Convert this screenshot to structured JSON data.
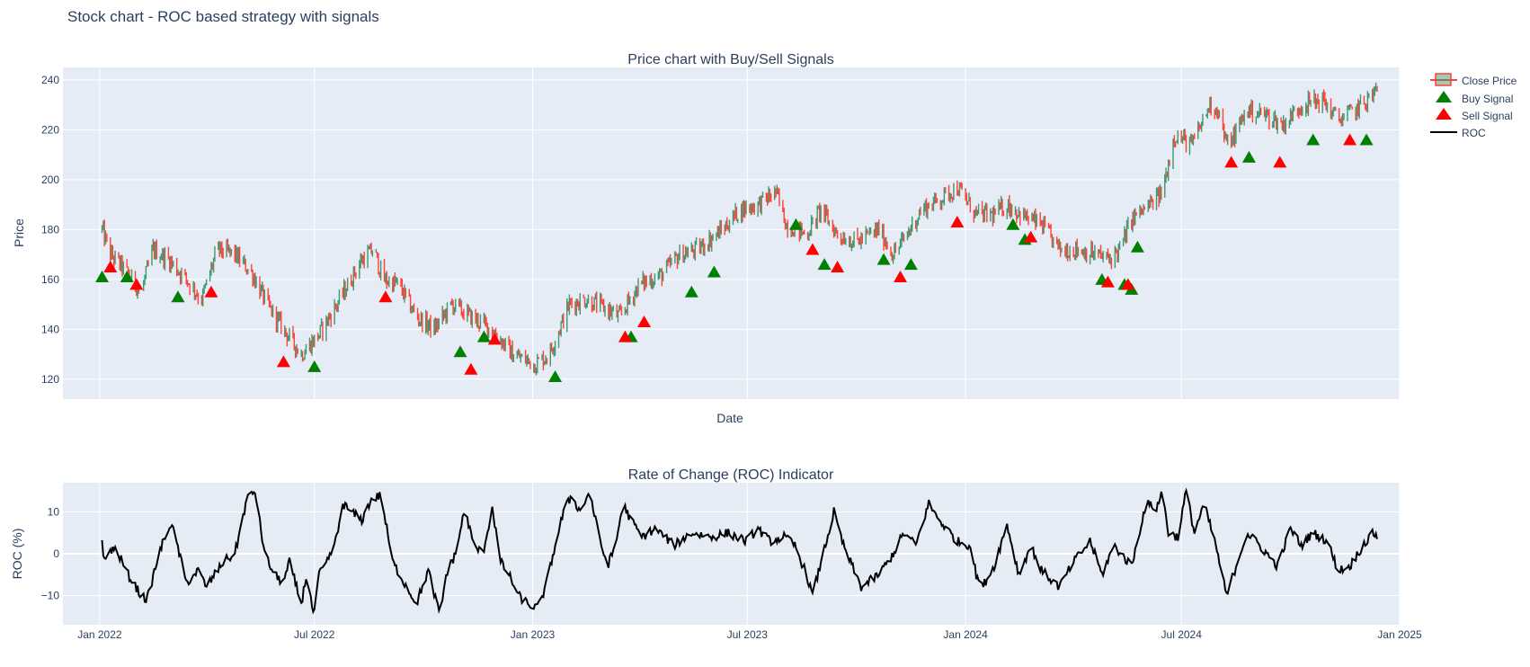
{
  "title": "Stock chart - ROC based strategy with signals",
  "colors": {
    "plot_bg": "#e5ecf6",
    "grid": "#ffffff",
    "increasing": "#3d9970",
    "decreasing": "#ff4136",
    "buy": "#008000",
    "sell": "#ff0000",
    "roc_line": "#000000"
  },
  "chart_data": [
    {
      "type": "candlestick",
      "title": "Price chart with Buy/Sell Signals",
      "xlabel": "Date",
      "ylabel": "Price",
      "xlim": [
        "2021-12-01",
        "2025-01-01"
      ],
      "ylim": [
        112,
        245
      ],
      "yticks": [
        120,
        140,
        160,
        180,
        200,
        220,
        240
      ],
      "grid": true,
      "legend_position": "top-right",
      "price_anchors": [
        [
          "2022-01-03",
          180
        ],
        [
          "2022-01-10",
          170
        ],
        [
          "2022-01-20",
          165
        ],
        [
          "2022-02-05",
          155
        ],
        [
          "2022-02-15",
          172
        ],
        [
          "2022-02-28",
          168
        ],
        [
          "2022-03-15",
          160
        ],
        [
          "2022-03-28",
          152
        ],
        [
          "2022-04-10",
          172
        ],
        [
          "2022-04-25",
          170
        ],
        [
          "2022-05-10",
          162
        ],
        [
          "2022-05-22",
          150
        ],
        [
          "2022-06-05",
          140
        ],
        [
          "2022-06-20",
          130
        ],
        [
          "2022-07-05",
          138
        ],
        [
          "2022-07-20",
          150
        ],
        [
          "2022-08-10",
          168
        ],
        [
          "2022-08-20",
          172
        ],
        [
          "2022-08-28",
          160
        ],
        [
          "2022-09-10",
          158
        ],
        [
          "2022-09-25",
          145
        ],
        [
          "2022-10-10",
          140
        ],
        [
          "2022-10-25",
          150
        ],
        [
          "2022-11-10",
          145
        ],
        [
          "2022-11-28",
          140
        ],
        [
          "2022-12-15",
          130
        ],
        [
          "2023-01-03",
          126
        ],
        [
          "2023-01-15",
          130
        ],
        [
          "2023-02-01",
          150
        ],
        [
          "2023-02-15",
          152
        ],
        [
          "2023-03-05",
          148
        ],
        [
          "2023-03-15",
          145
        ],
        [
          "2023-04-01",
          158
        ],
        [
          "2023-04-20",
          162
        ],
        [
          "2023-05-05",
          170
        ],
        [
          "2023-05-20",
          172
        ],
        [
          "2023-06-10",
          180
        ],
        [
          "2023-06-25",
          188
        ],
        [
          "2023-07-10",
          190
        ],
        [
          "2023-07-25",
          195
        ],
        [
          "2023-08-03",
          182
        ],
        [
          "2023-08-20",
          178
        ],
        [
          "2023-09-01",
          188
        ],
        [
          "2023-09-15",
          178
        ],
        [
          "2023-10-01",
          175
        ],
        [
          "2023-10-20",
          180
        ],
        [
          "2023-11-01",
          170
        ],
        [
          "2023-11-10",
          176
        ],
        [
          "2023-11-25",
          188
        ],
        [
          "2023-12-10",
          192
        ],
        [
          "2023-12-25",
          197
        ],
        [
          "2024-01-10",
          186
        ],
        [
          "2024-01-25",
          186
        ],
        [
          "2024-02-05",
          190
        ],
        [
          "2024-02-20",
          185
        ],
        [
          "2024-03-05",
          182
        ],
        [
          "2024-03-20",
          172
        ],
        [
          "2024-04-05",
          172
        ],
        [
          "2024-04-20",
          170
        ],
        [
          "2024-05-01",
          168
        ],
        [
          "2024-05-10",
          172
        ],
        [
          "2024-05-20",
          184
        ],
        [
          "2024-06-05",
          190
        ],
        [
          "2024-06-15",
          195
        ],
        [
          "2024-06-25",
          218
        ],
        [
          "2024-07-10",
          214
        ],
        [
          "2024-07-25",
          230
        ],
        [
          "2024-08-01",
          228
        ],
        [
          "2024-08-08",
          214
        ],
        [
          "2024-08-15",
          218
        ],
        [
          "2024-08-25",
          228
        ],
        [
          "2024-09-10",
          226
        ],
        [
          "2024-09-25",
          222
        ],
        [
          "2024-10-10",
          230
        ],
        [
          "2024-10-28",
          232
        ],
        [
          "2024-11-10",
          224
        ],
        [
          "2024-11-25",
          228
        ],
        [
          "2024-12-05",
          232
        ],
        [
          "2024-12-13",
          236
        ]
      ],
      "series": [
        {
          "name": "Close Price",
          "kind": "candlestick",
          "start": "2022-01-03",
          "end": "2024-12-13"
        },
        {
          "name": "Buy Signal",
          "kind": "marker-triangle-up",
          "points": [
            [
              "2022-01-03",
              161
            ],
            [
              "2022-01-24",
              161
            ],
            [
              "2022-03-08",
              153
            ],
            [
              "2022-07-01",
              125
            ],
            [
              "2022-11-01",
              131
            ],
            [
              "2022-11-21",
              137
            ],
            [
              "2023-01-20",
              121
            ],
            [
              "2023-03-25",
              137
            ],
            [
              "2023-05-15",
              155
            ],
            [
              "2023-06-03",
              163
            ],
            [
              "2023-08-11",
              182
            ],
            [
              "2023-09-04",
              166
            ],
            [
              "2023-10-24",
              168
            ],
            [
              "2023-11-16",
              166
            ],
            [
              "2024-02-10",
              182
            ],
            [
              "2024-02-20",
              176
            ],
            [
              "2024-04-25",
              160
            ],
            [
              "2024-05-14",
              158
            ],
            [
              "2024-05-20",
              156
            ],
            [
              "2024-05-25",
              173
            ],
            [
              "2024-08-27",
              209
            ],
            [
              "2024-10-20",
              216
            ],
            [
              "2024-12-04",
              216
            ]
          ]
        },
        {
          "name": "Sell Signal",
          "kind": "marker-triangle-up",
          "points": [
            [
              "2022-01-10",
              165
            ],
            [
              "2022-02-01",
              158
            ],
            [
              "2022-04-05",
              155
            ],
            [
              "2022-06-05",
              127
            ],
            [
              "2022-08-30",
              153
            ],
            [
              "2022-11-10",
              124
            ],
            [
              "2022-11-30",
              136
            ],
            [
              "2023-03-20",
              137
            ],
            [
              "2023-04-05",
              143
            ],
            [
              "2023-08-25",
              172
            ],
            [
              "2023-09-15",
              165
            ],
            [
              "2023-11-07",
              161
            ],
            [
              "2023-12-25",
              183
            ],
            [
              "2024-02-25",
              177
            ],
            [
              "2024-04-30",
              159
            ],
            [
              "2024-05-17",
              158
            ],
            [
              "2024-08-12",
              207
            ],
            [
              "2024-09-22",
              207
            ],
            [
              "2024-11-20",
              216
            ]
          ]
        },
        {
          "name": "ROC",
          "kind": "line"
        }
      ]
    },
    {
      "type": "line",
      "title": "Rate of Change (ROC) Indicator",
      "ylabel": "ROC (%)",
      "xlim": [
        "2021-12-01",
        "2025-01-01"
      ],
      "ylim": [
        -17,
        17
      ],
      "yticks": [
        -10,
        0,
        10
      ],
      "xticks": [
        [
          "2022-01-01",
          "Jan 2022"
        ],
        [
          "2022-07-01",
          "Jul 2022"
        ],
        [
          "2023-01-01",
          "Jan 2023"
        ],
        [
          "2023-07-01",
          "Jul 2023"
        ],
        [
          "2024-01-01",
          "Jan 2024"
        ],
        [
          "2024-07-01",
          "Jul 2024"
        ],
        [
          "2025-01-01",
          "Jan 2025"
        ]
      ],
      "grid": true,
      "series": [
        {
          "name": "ROC",
          "points": [
            [
              "2022-01-03",
              3
            ],
            [
              "2022-01-05",
              -2
            ],
            [
              "2022-01-10",
              1
            ],
            [
              "2022-01-15",
              1
            ],
            [
              "2022-01-25",
              -5
            ],
            [
              "2022-02-05",
              -10
            ],
            [
              "2022-02-10",
              -11
            ],
            [
              "2022-02-20",
              0
            ],
            [
              "2022-03-01",
              7
            ],
            [
              "2022-03-05",
              5
            ],
            [
              "2022-03-15",
              -7
            ],
            [
              "2022-03-25",
              -4
            ],
            [
              "2022-04-01",
              -8
            ],
            [
              "2022-04-15",
              -2
            ],
            [
              "2022-04-25",
              0
            ],
            [
              "2022-05-05",
              13
            ],
            [
              "2022-05-12",
              15
            ],
            [
              "2022-05-20",
              0
            ],
            [
              "2022-05-28",
              -5
            ],
            [
              "2022-06-05",
              -7
            ],
            [
              "2022-06-10",
              -2
            ],
            [
              "2022-06-20",
              -12
            ],
            [
              "2022-06-25",
              -4
            ],
            [
              "2022-06-30",
              -15
            ],
            [
              "2022-07-05",
              -5
            ],
            [
              "2022-07-12",
              -2
            ],
            [
              "2022-07-20",
              4
            ],
            [
              "2022-07-25",
              12
            ],
            [
              "2022-08-01",
              10
            ],
            [
              "2022-08-10",
              8
            ],
            [
              "2022-08-18",
              13
            ],
            [
              "2022-08-26",
              14
            ],
            [
              "2022-09-05",
              -2
            ],
            [
              "2022-09-15",
              -7
            ],
            [
              "2022-09-25",
              -12
            ],
            [
              "2022-10-05",
              -4
            ],
            [
              "2022-10-15",
              -15
            ],
            [
              "2022-10-20",
              -5
            ],
            [
              "2022-10-28",
              0
            ],
            [
              "2022-11-05",
              11
            ],
            [
              "2022-11-12",
              2
            ],
            [
              "2022-11-20",
              0
            ],
            [
              "2022-11-28",
              11
            ],
            [
              "2022-12-05",
              -2
            ],
            [
              "2022-12-12",
              -5
            ],
            [
              "2022-12-20",
              -10
            ],
            [
              "2022-12-28",
              -12
            ],
            [
              "2023-01-05",
              -13
            ],
            [
              "2023-01-12",
              -8
            ],
            [
              "2023-01-20",
              2
            ],
            [
              "2023-01-27",
              10
            ],
            [
              "2023-02-03",
              14
            ],
            [
              "2023-02-10",
              10
            ],
            [
              "2023-02-18",
              15
            ],
            [
              "2023-02-26",
              4
            ],
            [
              "2023-03-05",
              -3
            ],
            [
              "2023-03-12",
              2
            ],
            [
              "2023-03-18",
              12
            ],
            [
              "2023-03-25",
              8
            ],
            [
              "2023-04-03",
              4
            ],
            [
              "2023-04-15",
              6
            ],
            [
              "2023-04-30",
              2
            ],
            [
              "2023-05-15",
              5
            ],
            [
              "2023-06-01",
              4
            ],
            [
              "2023-06-15",
              5
            ],
            [
              "2023-06-30",
              3
            ],
            [
              "2023-07-10",
              6
            ],
            [
              "2023-07-20",
              3
            ],
            [
              "2023-08-01",
              4
            ],
            [
              "2023-08-10",
              2
            ],
            [
              "2023-08-20",
              -5
            ],
            [
              "2023-08-25",
              -10
            ],
            [
              "2023-09-03",
              0
            ],
            [
              "2023-09-12",
              10
            ],
            [
              "2023-09-20",
              2
            ],
            [
              "2023-10-05",
              -8
            ],
            [
              "2023-10-20",
              -5
            ],
            [
              "2023-11-01",
              0
            ],
            [
              "2023-11-10",
              5
            ],
            [
              "2023-11-20",
              2
            ],
            [
              "2023-12-01",
              12
            ],
            [
              "2023-12-10",
              8
            ],
            [
              "2023-12-25",
              3
            ],
            [
              "2024-01-05",
              2
            ],
            [
              "2024-01-10",
              -5
            ],
            [
              "2024-01-15",
              -8
            ],
            [
              "2024-01-25",
              -3
            ],
            [
              "2024-02-05",
              7
            ],
            [
              "2024-02-15",
              -5
            ],
            [
              "2024-02-25",
              2
            ],
            [
              "2024-03-05",
              -4
            ],
            [
              "2024-03-20",
              -8
            ],
            [
              "2024-04-01",
              -2
            ],
            [
              "2024-04-15",
              3
            ],
            [
              "2024-04-25",
              -5
            ],
            [
              "2024-05-05",
              2
            ],
            [
              "2024-05-20",
              -3
            ],
            [
              "2024-06-01",
              12
            ],
            [
              "2024-06-10",
              11
            ],
            [
              "2024-06-15",
              15
            ],
            [
              "2024-06-20",
              5
            ],
            [
              "2024-06-28",
              4
            ],
            [
              "2024-07-05",
              15
            ],
            [
              "2024-07-12",
              5
            ],
            [
              "2024-07-20",
              12
            ],
            [
              "2024-07-30",
              2
            ],
            [
              "2024-08-08",
              -10
            ],
            [
              "2024-08-15",
              -4
            ],
            [
              "2024-08-25",
              5
            ],
            [
              "2024-09-05",
              2
            ],
            [
              "2024-09-20",
              -3
            ],
            [
              "2024-10-01",
              6
            ],
            [
              "2024-10-10",
              2
            ],
            [
              "2024-10-20",
              5
            ],
            [
              "2024-11-01",
              3
            ],
            [
              "2024-11-10",
              -4
            ],
            [
              "2024-11-20",
              -3
            ],
            [
              "2024-12-01",
              2
            ],
            [
              "2024-12-10",
              5
            ],
            [
              "2024-12-13",
              4
            ]
          ]
        }
      ]
    }
  ]
}
